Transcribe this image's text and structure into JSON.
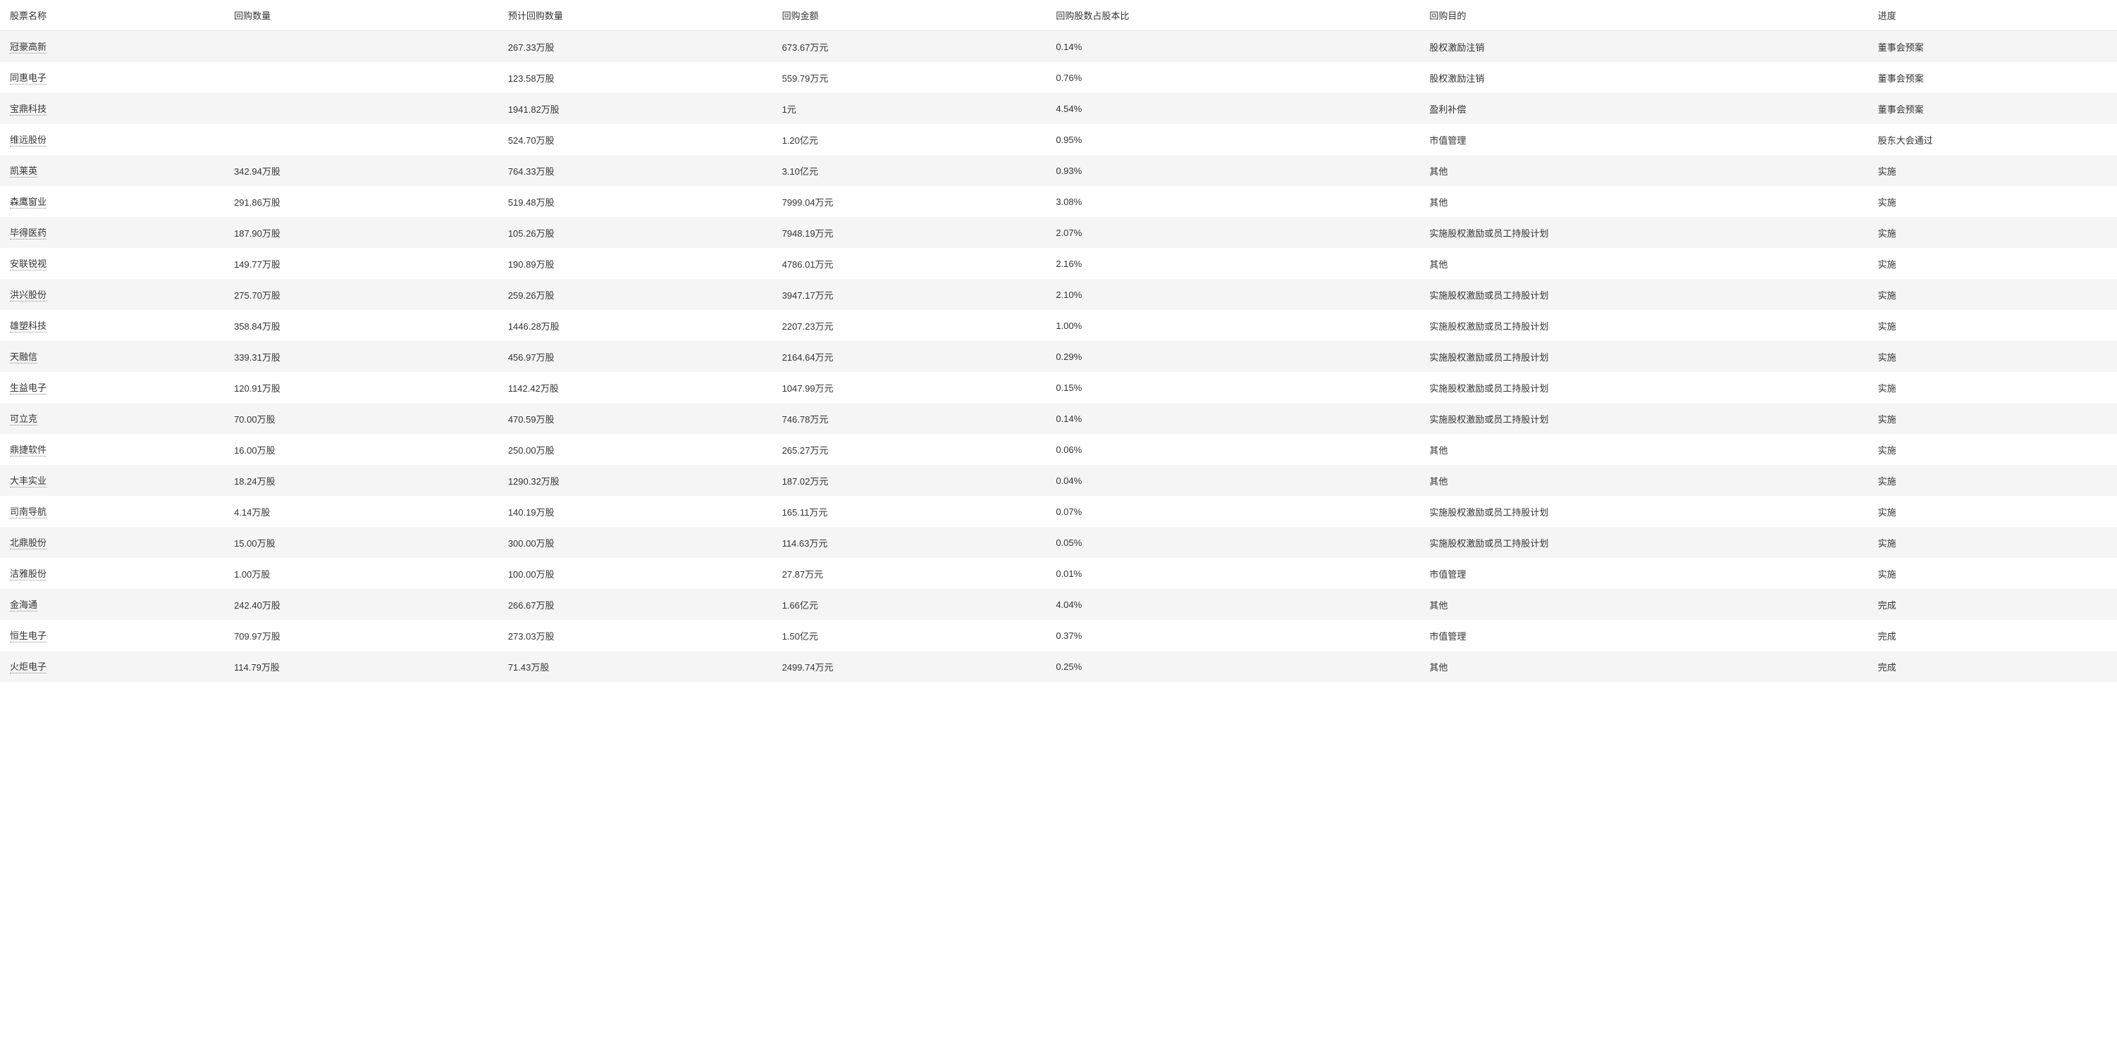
{
  "table": {
    "columns": [
      "股票名称",
      "回购数量",
      "预计回购数量",
      "回购金额",
      "回购股数占股本比",
      "回购目的",
      "进度"
    ],
    "rows": [
      {
        "name": "冠豪高新",
        "qty": "",
        "expected": "267.33万股",
        "amount": "673.67万元",
        "ratio": "0.14%",
        "purpose": "股权激励注销",
        "progress": "董事会预案"
      },
      {
        "name": "同惠电子",
        "qty": "",
        "expected": "123.58万股",
        "amount": "559.79万元",
        "ratio": "0.76%",
        "purpose": "股权激励注销",
        "progress": "董事会预案"
      },
      {
        "name": "宝鼎科技",
        "qty": "",
        "expected": "1941.82万股",
        "amount": "1元",
        "ratio": "4.54%",
        "purpose": "盈利补偿",
        "progress": "董事会预案"
      },
      {
        "name": "维远股份",
        "qty": "",
        "expected": "524.70万股",
        "amount": "1.20亿元",
        "ratio": "0.95%",
        "purpose": "市值管理",
        "progress": "股东大会通过"
      },
      {
        "name": "凯莱英",
        "qty": "342.94万股",
        "expected": "764.33万股",
        "amount": "3.10亿元",
        "ratio": "0.93%",
        "purpose": "其他",
        "progress": "实施"
      },
      {
        "name": "森鹰窗业",
        "qty": "291.86万股",
        "expected": "519.48万股",
        "amount": "7999.04万元",
        "ratio": "3.08%",
        "purpose": "其他",
        "progress": "实施"
      },
      {
        "name": "毕得医药",
        "qty": "187.90万股",
        "expected": "105.26万股",
        "amount": "7948.19万元",
        "ratio": "2.07%",
        "purpose": "实施股权激励或员工持股计划",
        "progress": "实施"
      },
      {
        "name": "安联锐视",
        "qty": "149.77万股",
        "expected": "190.89万股",
        "amount": "4786.01万元",
        "ratio": "2.16%",
        "purpose": "其他",
        "progress": "实施"
      },
      {
        "name": "洪兴股份",
        "qty": "275.70万股",
        "expected": "259.26万股",
        "amount": "3947.17万元",
        "ratio": "2.10%",
        "purpose": "实施股权激励或员工持股计划",
        "progress": "实施"
      },
      {
        "name": "雄塑科技",
        "qty": "358.84万股",
        "expected": "1446.28万股",
        "amount": "2207.23万元",
        "ratio": "1.00%",
        "purpose": "实施股权激励或员工持股计划",
        "progress": "实施"
      },
      {
        "name": "天融信",
        "qty": "339.31万股",
        "expected": "456.97万股",
        "amount": "2164.64万元",
        "ratio": "0.29%",
        "purpose": "实施股权激励或员工持股计划",
        "progress": "实施"
      },
      {
        "name": "生益电子",
        "qty": "120.91万股",
        "expected": "1142.42万股",
        "amount": "1047.99万元",
        "ratio": "0.15%",
        "purpose": "实施股权激励或员工持股计划",
        "progress": "实施"
      },
      {
        "name": "可立克",
        "qty": "70.00万股",
        "expected": "470.59万股",
        "amount": "746.78万元",
        "ratio": "0.14%",
        "purpose": "实施股权激励或员工持股计划",
        "progress": "实施"
      },
      {
        "name": "鼎捷软件",
        "qty": "16.00万股",
        "expected": "250.00万股",
        "amount": "265.27万元",
        "ratio": "0.06%",
        "purpose": "其他",
        "progress": "实施"
      },
      {
        "name": "大丰实业",
        "qty": "18.24万股",
        "expected": "1290.32万股",
        "amount": "187.02万元",
        "ratio": "0.04%",
        "purpose": "其他",
        "progress": "实施"
      },
      {
        "name": "司南导航",
        "qty": "4.14万股",
        "expected": "140.19万股",
        "amount": "165.11万元",
        "ratio": "0.07%",
        "purpose": "实施股权激励或员工持股计划",
        "progress": "实施"
      },
      {
        "name": "北鼎股份",
        "qty": "15.00万股",
        "expected": "300.00万股",
        "amount": "114.63万元",
        "ratio": "0.05%",
        "purpose": "实施股权激励或员工持股计划",
        "progress": "实施"
      },
      {
        "name": "洁雅股份",
        "qty": "1.00万股",
        "expected": "100.00万股",
        "amount": "27.87万元",
        "ratio": "0.01%",
        "purpose": "市值管理",
        "progress": "实施"
      },
      {
        "name": "金海通",
        "qty": "242.40万股",
        "expected": "266.67万股",
        "amount": "1.66亿元",
        "ratio": "4.04%",
        "purpose": "其他",
        "progress": "完成"
      },
      {
        "name": "恒生电子",
        "qty": "709.97万股",
        "expected": "273.03万股",
        "amount": "1.50亿元",
        "ratio": "0.37%",
        "purpose": "市值管理",
        "progress": "完成"
      },
      {
        "name": "火炬电子",
        "qty": "114.79万股",
        "expected": "71.43万股",
        "amount": "2499.74万元",
        "ratio": "0.25%",
        "purpose": "其他",
        "progress": "完成"
      }
    ]
  }
}
